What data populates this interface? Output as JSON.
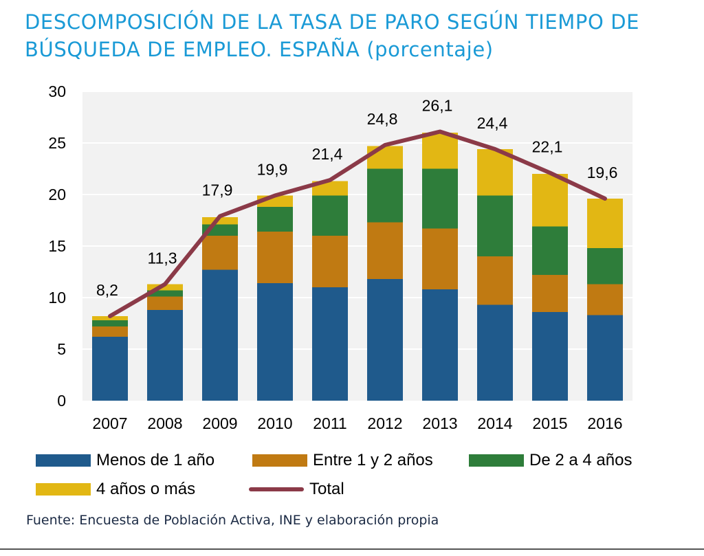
{
  "title": "DESCOMPOSICIÓN DE LA TASA DE PARO SEGÚN TIEMPO DE BÚSQUEDA DE EMPLEO. ESPAÑA (porcentaje)",
  "source": "Fuente: Encuesta de Población Activa, INE y elaboración propia",
  "chart_data": {
    "type": "bar",
    "stacked": true,
    "title": "DESCOMPOSICIÓN DE LA TASA DE PARO SEGÚN TIEMPO DE BÚSQUEDA DE EMPLEO. ESPAÑA (porcentaje)",
    "categories": [
      "2007",
      "2008",
      "2009",
      "2010",
      "2011",
      "2012",
      "2013",
      "2014",
      "2015",
      "2016"
    ],
    "series": [
      {
        "name": "Menos de 1 año",
        "color": "#1f5a8c",
        "values": [
          6.2,
          8.8,
          12.7,
          11.4,
          11.0,
          11.8,
          10.8,
          9.3,
          8.6,
          8.3
        ]
      },
      {
        "name": "Entre 1 y 2 años",
        "color": "#c07a12",
        "values": [
          1.0,
          1.3,
          3.3,
          5.0,
          5.0,
          5.5,
          5.9,
          4.7,
          3.6,
          3.0
        ]
      },
      {
        "name": "De 2 a 4 años",
        "color": "#2e7d3a",
        "values": [
          0.6,
          0.6,
          1.1,
          2.4,
          3.9,
          5.2,
          5.8,
          5.9,
          4.7,
          3.5
        ]
      },
      {
        "name": "4 años o más",
        "color": "#e2b714",
        "values": [
          0.4,
          0.6,
          0.7,
          1.1,
          1.4,
          2.2,
          3.5,
          4.5,
          5.1,
          4.8
        ]
      }
    ],
    "line_series": {
      "name": "Total",
      "color": "#8b3a48",
      "values": [
        8.2,
        11.3,
        17.9,
        19.9,
        21.4,
        24.8,
        26.1,
        24.4,
        22.1,
        19.6
      ]
    },
    "data_labels": [
      "8,2",
      "11,3",
      "17,9",
      "19,9",
      "21,4",
      "24,8",
      "26,1",
      "24,4",
      "22,1",
      "19,6"
    ],
    "ylim": [
      0,
      30
    ],
    "yticks": [
      "0",
      "5",
      "10",
      "15",
      "20",
      "25",
      "30"
    ],
    "ytick_values": [
      0,
      5,
      10,
      15,
      20,
      25,
      30
    ],
    "grid": true,
    "legend_position": "bottom",
    "plot_background": "#f2f2f2"
  }
}
